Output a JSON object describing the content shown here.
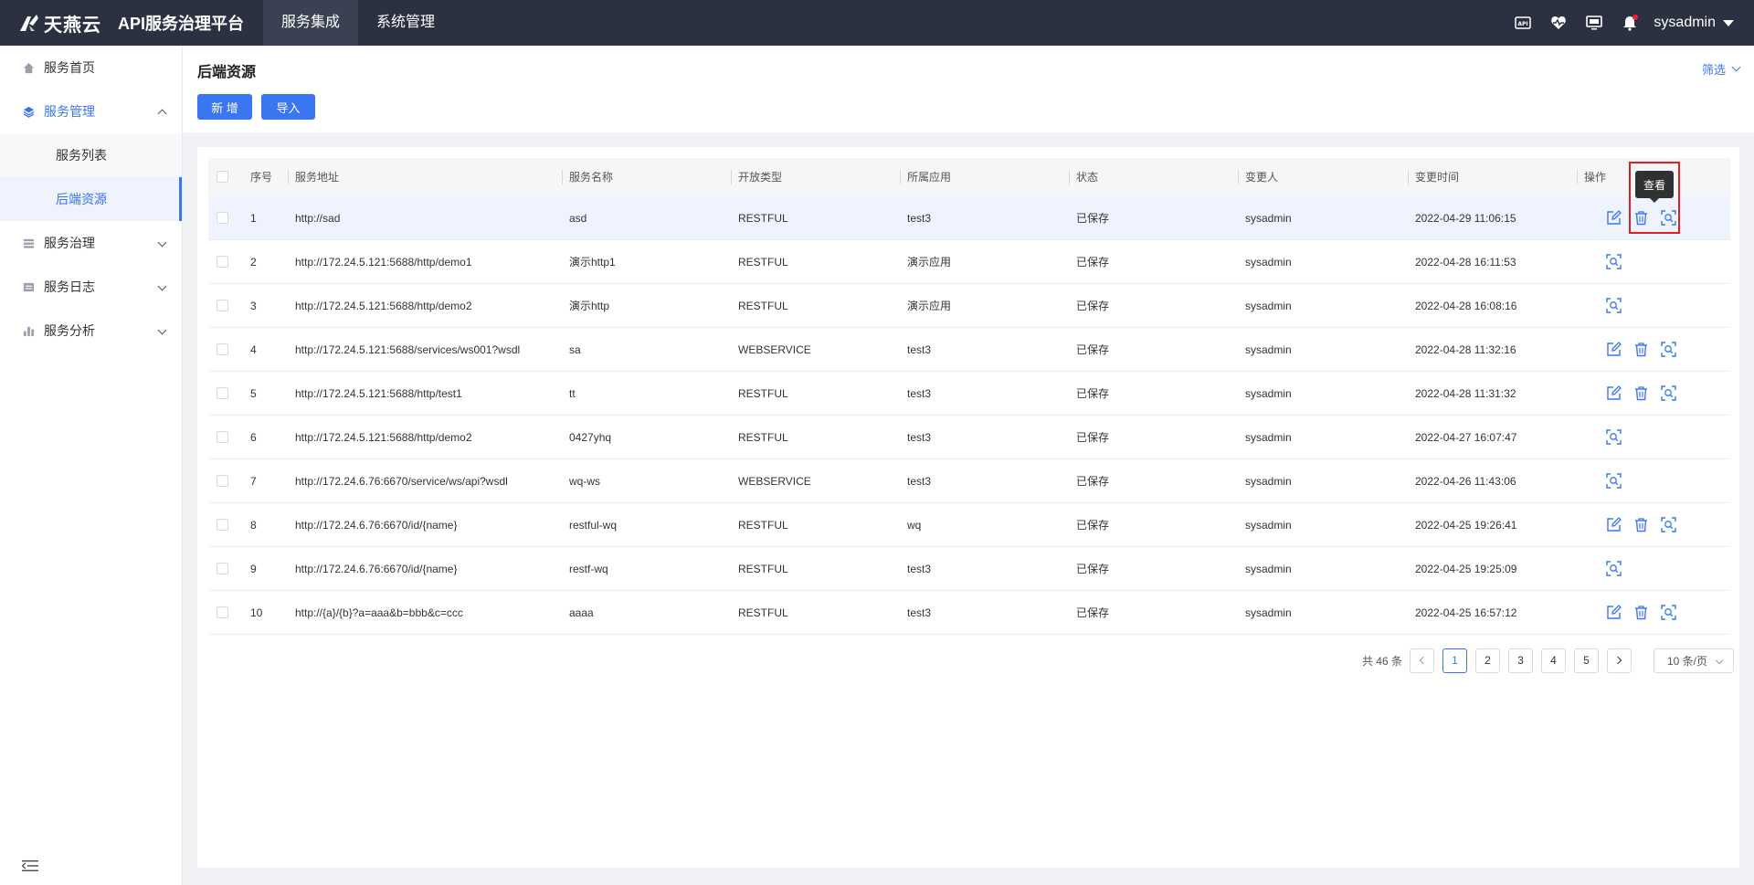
{
  "brand": {
    "logo_text": "天燕云",
    "platform_title": "API服务治理平台"
  },
  "topnav": [
    {
      "label": "服务集成",
      "active": true
    },
    {
      "label": "系统管理",
      "active": false
    }
  ],
  "top_right": {
    "icons": [
      "api-icon",
      "heartbeat-icon",
      "monitor-icon",
      "bell-icon"
    ],
    "user": "sysadmin"
  },
  "sidebar": {
    "items": [
      {
        "label": "服务首页",
        "icon": "home-icon"
      },
      {
        "label": "服务管理",
        "icon": "layers-icon",
        "open": true,
        "children": [
          {
            "label": "服务列表"
          },
          {
            "label": "后端资源",
            "active": true
          }
        ]
      },
      {
        "label": "服务治理",
        "icon": "stack-icon"
      },
      {
        "label": "服务日志",
        "icon": "log-icon"
      },
      {
        "label": "服务分析",
        "icon": "bar-chart-icon"
      }
    ]
  },
  "page": {
    "title": "后端资源",
    "filter_label": "筛选",
    "add_label": "新 增",
    "import_label": "导入"
  },
  "table": {
    "columns": [
      "序号",
      "服务地址",
      "服务名称",
      "开放类型",
      "所属应用",
      "状态",
      "变更人",
      "变更时间",
      "操作"
    ],
    "rows": [
      {
        "no": "1",
        "url": "http://sad",
        "name": "asd",
        "type": "RESTFUL",
        "app": "test3",
        "status": "已保存",
        "user": "sysadmin",
        "time": "2022-04-29 11:06:15",
        "actions": [
          "edit",
          "delete",
          "view"
        ]
      },
      {
        "no": "2",
        "url": "http://172.24.5.121:5688/http/demo1",
        "name": "演示http1",
        "type": "RESTFUL",
        "app": "演示应用",
        "status": "已保存",
        "user": "sysadmin",
        "time": "2022-04-28 16:11:53",
        "actions": [
          "view"
        ]
      },
      {
        "no": "3",
        "url": "http://172.24.5.121:5688/http/demo2",
        "name": "演示http",
        "type": "RESTFUL",
        "app": "演示应用",
        "status": "已保存",
        "user": "sysadmin",
        "time": "2022-04-28 16:08:16",
        "actions": [
          "view"
        ]
      },
      {
        "no": "4",
        "url": "http://172.24.5.121:5688/services/ws001?wsdl",
        "name": "sa",
        "type": "WEBSERVICE",
        "app": "test3",
        "status": "已保存",
        "user": "sysadmin",
        "time": "2022-04-28 11:32:16",
        "actions": [
          "edit",
          "delete",
          "view"
        ]
      },
      {
        "no": "5",
        "url": "http://172.24.5.121:5688/http/test1",
        "name": "tt",
        "type": "RESTFUL",
        "app": "test3",
        "status": "已保存",
        "user": "sysadmin",
        "time": "2022-04-28 11:31:32",
        "actions": [
          "edit",
          "delete",
          "view"
        ]
      },
      {
        "no": "6",
        "url": "http://172.24.5.121:5688/http/demo2",
        "name": "0427yhq",
        "type": "RESTFUL",
        "app": "test3",
        "status": "已保存",
        "user": "sysadmin",
        "time": "2022-04-27 16:07:47",
        "actions": [
          "view"
        ]
      },
      {
        "no": "7",
        "url": "http://172.24.6.76:6670/service/ws/api?wsdl",
        "name": "wq-ws",
        "type": "WEBSERVICE",
        "app": "test3",
        "status": "已保存",
        "user": "sysadmin",
        "time": "2022-04-26 11:43:06",
        "actions": [
          "view"
        ]
      },
      {
        "no": "8",
        "url": "http://172.24.6.76:6670/id/{name}",
        "name": "restful-wq",
        "type": "RESTFUL",
        "app": "wq",
        "status": "已保存",
        "user": "sysadmin",
        "time": "2022-04-25 19:26:41",
        "actions": [
          "edit",
          "delete",
          "view"
        ]
      },
      {
        "no": "9",
        "url": "http://172.24.6.76:6670/id/{name}",
        "name": "restf-wq",
        "type": "RESTFUL",
        "app": "test3",
        "status": "已保存",
        "user": "sysadmin",
        "time": "2022-04-25 19:25:09",
        "actions": [
          "view"
        ]
      },
      {
        "no": "10",
        "url": "http://{a}/{b}?a=aaa&b=bbb&c=ccc",
        "name": "aaaa",
        "type": "RESTFUL",
        "app": "test3",
        "status": "已保存",
        "user": "sysadmin",
        "time": "2022-04-25 16:57:12",
        "actions": [
          "edit",
          "delete",
          "view"
        ]
      }
    ],
    "tooltip": "查看"
  },
  "pagination": {
    "total_text": "共 46 条",
    "pages": [
      "1",
      "2",
      "3",
      "4",
      "5"
    ],
    "current": "1",
    "page_size": "10 条/页"
  },
  "colors": {
    "topbar": "#2b3141",
    "primary": "#3a76f0",
    "highlight": "#e02020"
  }
}
